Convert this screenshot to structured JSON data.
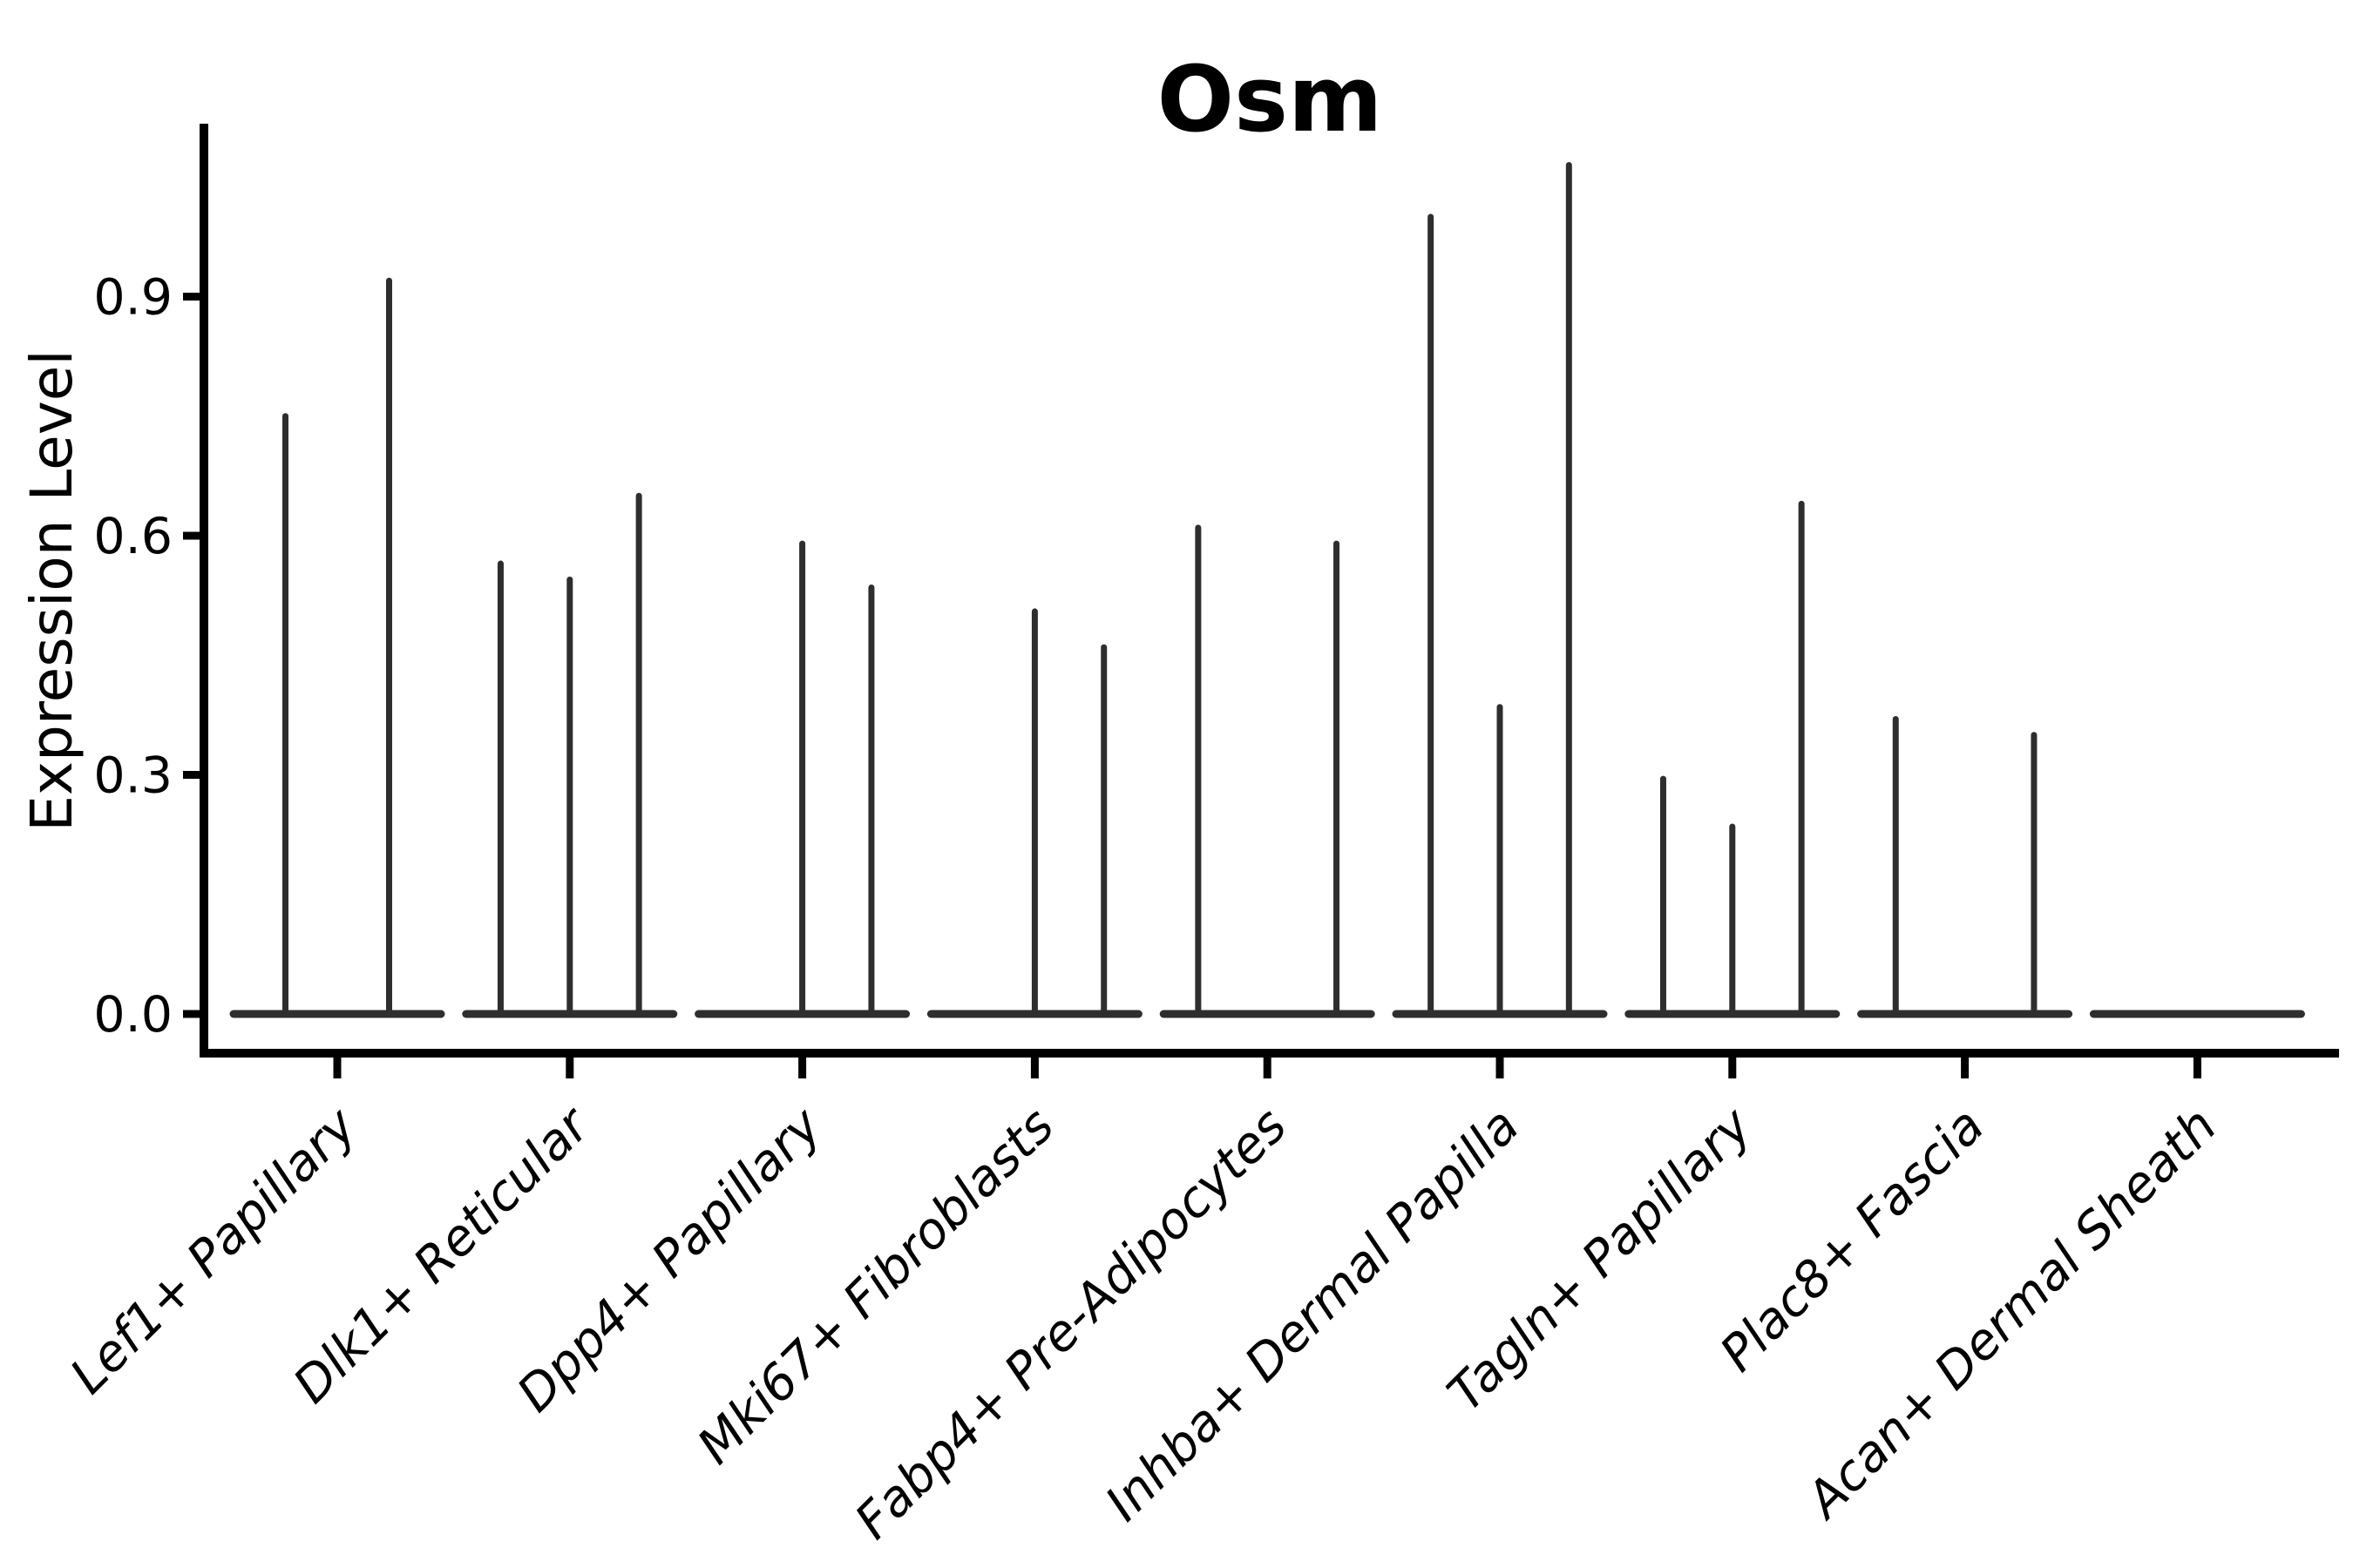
{
  "title": "Osm",
  "chart_data": {
    "type": "violin",
    "title": "Osm",
    "xlabel": "",
    "ylabel": "Expression Level",
    "legend": "none",
    "grid": false,
    "ylim": [
      -0.05,
      1.12
    ],
    "ytick_values": [
      0.0,
      0.3,
      0.6,
      0.9
    ],
    "ytick_labels": [
      "0.0",
      "0.3",
      "0.6",
      "0.9"
    ],
    "categories": [
      "Lef1+ Papillary",
      "Dlk1+ Reticular",
      "Dpp4+ Papillary",
      "Mki67+ Fibroblasts",
      "Fabp4+ Pre-Adipocytes",
      "Inhba+ Dermal Papilla",
      "Tagln+ Papillary",
      "Plac8+ Fascia",
      "Acan+ Dermal Sheath"
    ],
    "groups": [
      {
        "category": "Lef1+ Papillary",
        "violin_heights": [
          0.75,
          0.92
        ]
      },
      {
        "category": "Dlk1+ Reticular",
        "violin_heights": [
          0.565,
          0.545,
          0.65
        ]
      },
      {
        "category": "Dpp4+ Papillary",
        "violin_heights": [
          0,
          0.59,
          0.535
        ]
      },
      {
        "category": "Mki67+ Fibroblasts",
        "violin_heights": [
          0,
          0.505,
          0.46
        ]
      },
      {
        "category": "Fabp4+ Pre-Adipocytes",
        "violin_heights": [
          0.61,
          0,
          0.59
        ]
      },
      {
        "category": "Inhba+ Dermal Papilla",
        "violin_heights": [
          1.0,
          0.385,
          1.065
        ]
      },
      {
        "category": "Tagln+ Papillary",
        "violin_heights": [
          0.295,
          0.235,
          0.64
        ]
      },
      {
        "category": "Plac8+ Fascia",
        "violin_heights": [
          0.37,
          0,
          0.35
        ]
      },
      {
        "category": "Acan+ Dermal Sheath",
        "violin_heights": [
          0,
          0,
          0
        ]
      }
    ],
    "colors": {
      "violin": "#2e2e2e",
      "axis": "#000000",
      "text": "#000000",
      "background": "#ffffff"
    }
  }
}
